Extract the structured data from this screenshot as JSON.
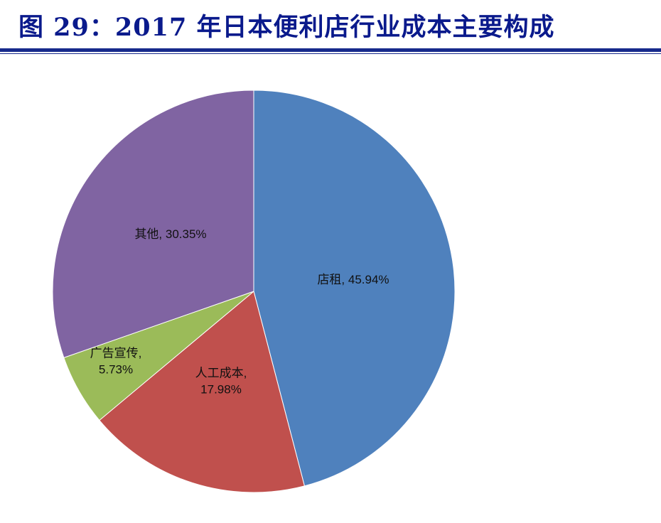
{
  "title": "图 29：2017 年日本便利店行业成本主要构成",
  "chart_data": {
    "type": "pie",
    "slices": [
      {
        "label": "店租",
        "value": 45.94,
        "text": "店租, 45.94%",
        "color": "#4f81bd"
      },
      {
        "label": "人工成本",
        "value": 17.98,
        "text": "人工成本,\n17.98%",
        "color": "#c0504d"
      },
      {
        "label": "广告宣传",
        "value": 5.73,
        "text": "广告宣传,\n5.73%",
        "color": "#9bbb59"
      },
      {
        "label": "其他",
        "value": 30.35,
        "text": "其他, 30.35%",
        "color": "#8064a2"
      }
    ],
    "start": "top",
    "direction": "clockwise",
    "legend": "none"
  }
}
